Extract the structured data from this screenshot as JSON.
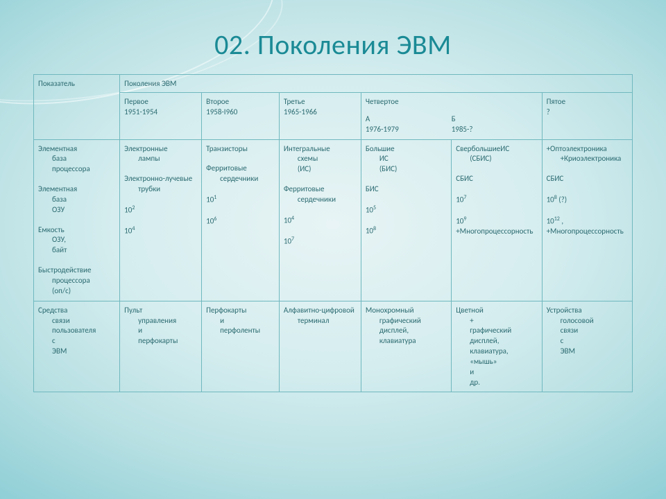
{
  "title": "02. Поколения ЭВМ",
  "table": {
    "corner": "Показатель",
    "spanHeader": "Поколения ЭВМ",
    "genHeaders": [
      {
        "name": "Первое",
        "years": "1951-1954"
      },
      {
        "name": "Второе",
        "years": "1958-I960"
      },
      {
        "name": "Третье",
        "years": "1965-1966"
      },
      {
        "name": "Четвертое",
        "sub": [
          {
            "label": "А",
            "years": "1976-1979"
          },
          {
            "label": "Б",
            "years": "1985-?"
          }
        ]
      },
      {
        "name": "Пятое",
        "years": "?"
      }
    ],
    "groups": [
      {
        "rows": [
          {
            "label": "Элементная база процессора",
            "cells": [
              "Электронные лампы",
              "Транзисторы",
              "Интегральные схемы (ИС)",
              "Большие ИС (БИС)",
              "СвербольшиеИС (СБИС)",
              "+Оптоэлектроника +Криоэлектроника"
            ]
          },
          {
            "label": "Элементная база ОЗУ",
            "cells": [
              "Электронно-лучевые трубки",
              "Ферритовые сердечники",
              "Ферритовые сердечники",
              "БИС",
              "СБИС",
              "СБИС"
            ]
          },
          {
            "label": "Емкость ОЗУ, байт",
            "cells_html": [
              "10<sup>2</sup>",
              "10<sup>1</sup>",
              "10<sup>4</sup>",
              "10<sup>5</sup>",
              "10<sup>7</sup>",
              "10<sup>8</sup> (?)"
            ]
          },
          {
            "label": "Быстродействие процессора (оп/с)",
            "cells_html": [
              "10<sup>4</sup>",
              "10<sup>6</sup>",
              "10<sup>7</sup>",
              "10<sup>8</sup>",
              "10<sup>9</sup> +Многопроцессорность",
              "10<sup>12</sup> , +Многопроцессорность"
            ]
          }
        ]
      },
      {
        "rows": [
          {
            "label": "Средства связи пользователя с ЭВМ",
            "cells": [
              "Пульт управления и перфокарты",
              "Перфокарты и перфоленты",
              "Алфавитно-цифровой терминал",
              "Монохромный графический дисплей, клавиатура",
              "Цветной + графический дисплей, клавиатура, «мышь» и др.",
              "Устройства голосовой связи с ЭВМ"
            ]
          }
        ]
      }
    ]
  },
  "style": {
    "title_color": "#1a8a95",
    "title_fontsize": 40,
    "border_color": "#6fb8bf",
    "text_color": "#2a6a70",
    "cell_fontsize": 11,
    "background_gradient": [
      "#e8f4f5",
      "#d5edef",
      "#b8e0e3",
      "#8fcfd6",
      "#6ec0ca"
    ]
  }
}
